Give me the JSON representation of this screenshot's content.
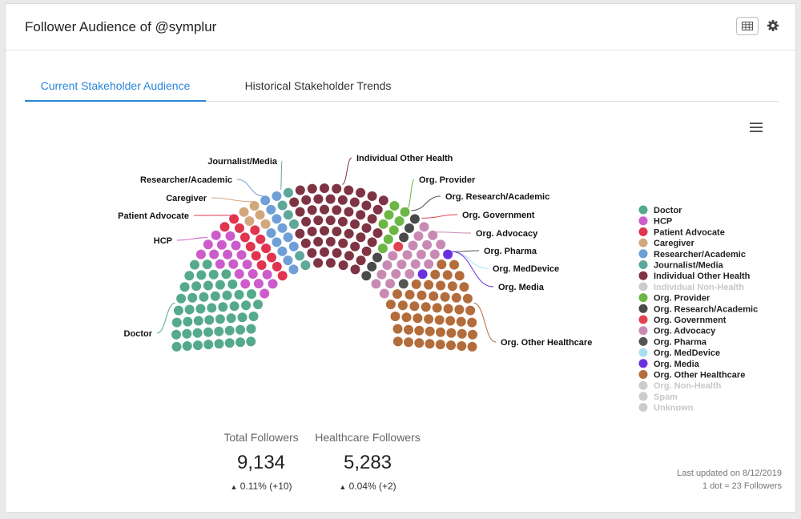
{
  "header": {
    "title": "Follower Audience of @symplur",
    "table_icon": "table-icon",
    "settings_icon": "gear-icon"
  },
  "tabs": [
    {
      "label": "Current Stakeholder Audience",
      "active": true
    },
    {
      "label": "Historical Stakeholder Trends",
      "active": false
    }
  ],
  "stats": {
    "total": {
      "label": "Total Followers",
      "value": "9,134",
      "change": "0.11% (+10)"
    },
    "healthcare": {
      "label": "Healthcare Followers",
      "value": "5,283",
      "change": "0.04% (+2)"
    }
  },
  "footer": {
    "updated": "Last updated on 8/12/2019",
    "scale": "1 dot ≈ 23 Followers"
  },
  "chart_data": {
    "type": "parliament",
    "unit_per_dot": 23,
    "series": [
      {
        "name": "Doctor",
        "color": "#55aa8c",
        "dots": 50,
        "enabled": true
      },
      {
        "name": "HCP",
        "color": "#cc5bcc",
        "dots": 19,
        "enabled": true
      },
      {
        "name": "Patient Advocate",
        "color": "#e0344f",
        "dots": 13,
        "enabled": true
      },
      {
        "name": "Caregiver",
        "color": "#d3a77e",
        "dots": 5,
        "enabled": true
      },
      {
        "name": "Researcher/Academic",
        "color": "#6f9fd6",
        "dots": 12,
        "enabled": true
      },
      {
        "name": "Journalist/Media",
        "color": "#5ea79a",
        "dots": 6,
        "enabled": true
      },
      {
        "name": "Individual Other Health",
        "color": "#7f3444",
        "dots": 52,
        "enabled": true
      },
      {
        "name": "Individual Non-Health",
        "color": "#d3d3d3",
        "dots": 0,
        "enabled": false
      },
      {
        "name": "Org. Provider",
        "color": "#6bb644",
        "dots": 8,
        "enabled": true
      },
      {
        "name": "Org. Research/Academic",
        "color": "#4a4a4a",
        "dots": 6,
        "enabled": true
      },
      {
        "name": "Org. Government",
        "color": "#e24352",
        "dots": 1,
        "enabled": true
      },
      {
        "name": "Org. Advocacy",
        "color": "#c88ab5",
        "dots": 20,
        "enabled": true
      },
      {
        "name": "Org. Pharma",
        "color": "#555555",
        "dots": 1,
        "enabled": true
      },
      {
        "name": "Org. MedDevice",
        "color": "#a9def2",
        "dots": 0,
        "enabled": true
      },
      {
        "name": "Org. Media",
        "color": "#6a30e0",
        "dots": 2,
        "enabled": true
      },
      {
        "name": "Org. Other Healthcare",
        "color": "#b36c3b",
        "dots": 49,
        "enabled": true
      },
      {
        "name": "Org. Non-Health",
        "color": "#d3d3d3",
        "dots": 0,
        "enabled": false
      },
      {
        "name": "Spam",
        "color": "#d3d3d3",
        "dots": 0,
        "enabled": false
      },
      {
        "name": "Unknown",
        "color": "#d3d3d3",
        "dots": 0,
        "enabled": false
      }
    ],
    "callouts": [
      "Doctor",
      "HCP",
      "Patient Advocate",
      "Caregiver",
      "Researcher/Academic",
      "Journalist/Media",
      "Individual Other Health",
      "Org. Provider",
      "Org. Research/Academic",
      "Org. Government",
      "Org. Advocacy",
      "Org. Pharma",
      "Org. MedDevice",
      "Org. Media",
      "Org. Other Healthcare"
    ]
  }
}
